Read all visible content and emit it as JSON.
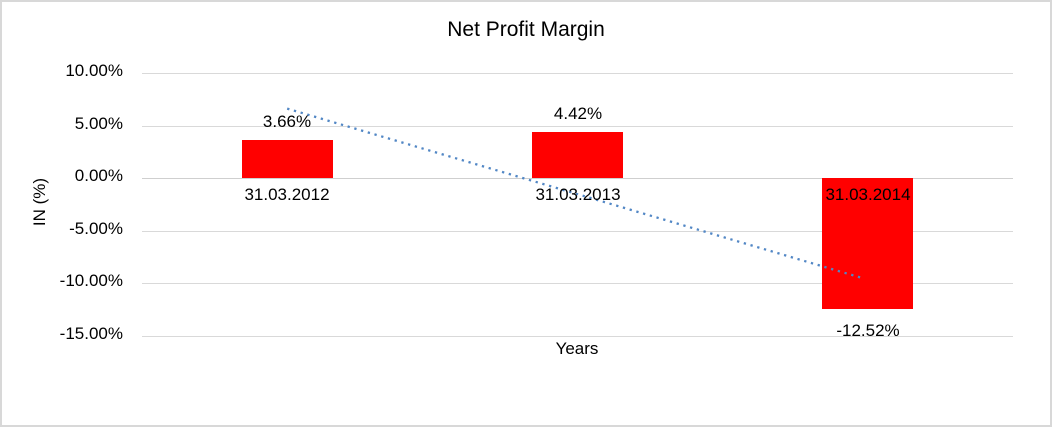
{
  "chart_data": {
    "type": "bar",
    "title": "Net Profit Margin",
    "xlabel": "Years",
    "ylabel": "IN (%)",
    "categories": [
      "31.03.2012",
      "31.03.2013",
      "31.03.2014"
    ],
    "values": [
      3.66,
      4.42,
      -12.52
    ],
    "data_labels": [
      "3.66%",
      "4.42%",
      "-12.52%"
    ],
    "ytick_values": [
      10,
      5,
      0,
      -5,
      -10,
      -15
    ],
    "ytick_labels": [
      "10.00%",
      "5.00%",
      "0.00%",
      "-5.00%",
      "-10.00%",
      "-15.00%"
    ],
    "ylim": [
      -15,
      10
    ],
    "grid": true,
    "legend": "none",
    "bar_color": "#ff0000",
    "gridline_color": "#d9d9d9",
    "text_color": "#000000",
    "trendline": {
      "type": "linear",
      "style": "dotted",
      "color": "#5287c5"
    }
  }
}
